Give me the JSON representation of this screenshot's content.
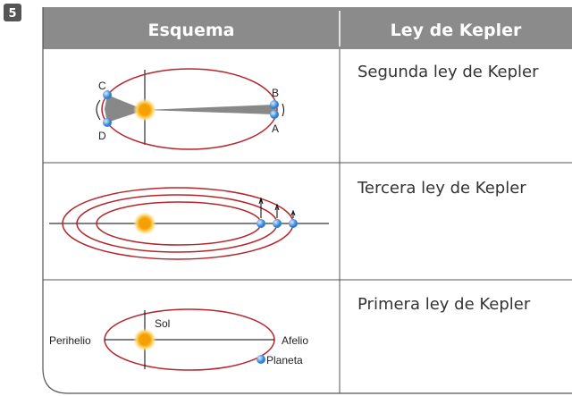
{
  "number": "5",
  "table": {
    "headers": [
      "Esquema",
      "Ley de Kepler"
    ],
    "rows": [
      {
        "labels": [
          "C",
          "D",
          "B",
          "A"
        ],
        "law": "Segunda ley de Kepler"
      },
      {
        "labels": [],
        "law": "Tercera ley de Kepler"
      },
      {
        "labels": [
          "Sol",
          "Perihelio",
          "Afelio",
          "Planeta"
        ],
        "law": "Primera ley de Kepler"
      }
    ]
  }
}
